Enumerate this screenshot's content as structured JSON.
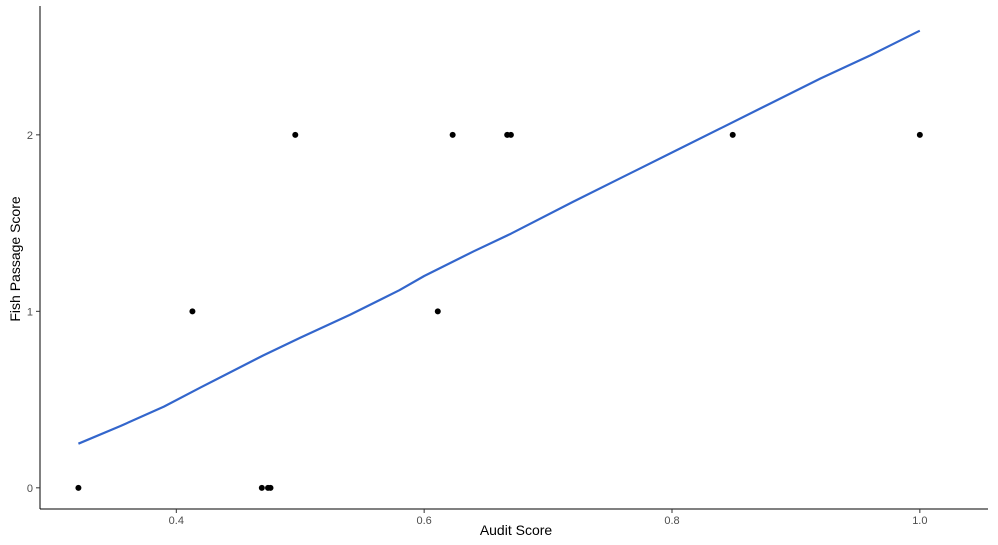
{
  "chart_data": {
    "type": "scatter",
    "title": "",
    "xlabel": "Audit Score",
    "ylabel": "Fish Passage Score",
    "xlim": [
      0.29,
      1.055
    ],
    "ylim": [
      -0.12,
      2.73
    ],
    "xticks": [
      0.4,
      0.6,
      0.8,
      1.0
    ],
    "xtick_labels": [
      "0.4",
      "0.6",
      "0.8",
      "1.0"
    ],
    "yticks": [
      0,
      1,
      2
    ],
    "ytick_labels": [
      "0",
      "1",
      "2"
    ],
    "grid": false,
    "legend": "none",
    "points": [
      {
        "x": 0.321,
        "y": 0
      },
      {
        "x": 0.413,
        "y": 1
      },
      {
        "x": 0.469,
        "y": 0
      },
      {
        "x": 0.474,
        "y": 0
      },
      {
        "x": 0.476,
        "y": 0
      },
      {
        "x": 0.496,
        "y": 2
      },
      {
        "x": 0.611,
        "y": 1
      },
      {
        "x": 0.623,
        "y": 2
      },
      {
        "x": 0.667,
        "y": 2
      },
      {
        "x": 0.67,
        "y": 2
      },
      {
        "x": 0.849,
        "y": 2
      },
      {
        "x": 1.0,
        "y": 2
      }
    ],
    "trend_line": {
      "x": [
        0.321,
        0.355,
        0.39,
        0.42,
        0.47,
        0.5,
        0.54,
        0.58,
        0.6,
        0.64,
        0.67,
        0.72,
        0.76,
        0.8,
        0.84,
        0.88,
        0.92,
        0.96,
        1.0
      ],
      "y": [
        0.25,
        0.35,
        0.46,
        0.57,
        0.75,
        0.85,
        0.98,
        1.12,
        1.2,
        1.34,
        1.44,
        1.62,
        1.76,
        1.9,
        2.04,
        2.18,
        2.32,
        2.45,
        2.59
      ]
    },
    "colors": {
      "points": "#000000",
      "trend_line": "#3366cc",
      "axis": "#000000",
      "tick_labels": "#4d4d4d"
    }
  }
}
